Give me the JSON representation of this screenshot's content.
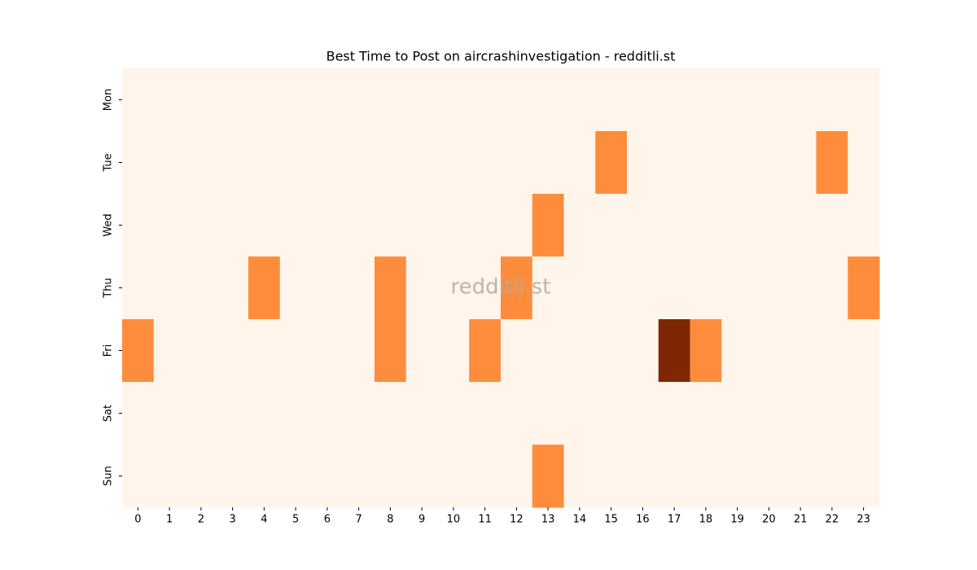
{
  "chart_data": {
    "type": "heatmap",
    "title": "Best Time to Post on aircrashinvestigation - redditli.st",
    "watermark": "redditli.st",
    "x": [
      0,
      1,
      2,
      3,
      4,
      5,
      6,
      7,
      8,
      9,
      10,
      11,
      12,
      13,
      14,
      15,
      16,
      17,
      18,
      19,
      20,
      21,
      22,
      23
    ],
    "y": [
      "Mon",
      "Tue",
      "Wed",
      "Thu",
      "Fri",
      "Sat",
      "Sun"
    ],
    "z": [
      [
        0,
        0,
        0,
        0,
        0,
        0,
        0,
        0,
        0,
        0,
        0,
        0,
        0,
        0,
        0,
        0,
        0,
        0,
        0,
        0,
        0,
        0,
        0,
        0
      ],
      [
        0,
        0,
        0,
        0,
        0,
        0,
        0,
        0,
        0,
        0,
        0,
        0,
        0,
        0,
        0,
        1,
        0,
        0,
        0,
        0,
        0,
        0,
        1,
        0
      ],
      [
        0,
        0,
        0,
        0,
        0,
        0,
        0,
        0,
        0,
        0,
        0,
        0,
        0,
        1,
        0,
        0,
        0,
        0,
        0,
        0,
        0,
        0,
        0,
        0
      ],
      [
        0,
        0,
        0,
        0,
        1,
        0,
        0,
        0,
        1,
        0,
        0,
        0,
        1,
        0,
        0,
        0,
        0,
        0,
        0,
        0,
        0,
        0,
        0,
        1
      ],
      [
        1,
        0,
        0,
        0,
        0,
        0,
        0,
        0,
        1,
        0,
        0,
        1,
        0,
        0,
        0,
        0,
        0,
        2,
        1,
        0,
        0,
        0,
        0,
        0
      ],
      [
        0,
        0,
        0,
        0,
        0,
        0,
        0,
        0,
        0,
        0,
        0,
        0,
        0,
        0,
        0,
        0,
        0,
        0,
        0,
        0,
        0,
        0,
        0,
        0
      ],
      [
        0,
        0,
        0,
        0,
        0,
        0,
        0,
        0,
        0,
        0,
        0,
        0,
        0,
        1,
        0,
        0,
        0,
        0,
        0,
        0,
        0,
        0,
        0,
        0
      ]
    ],
    "zlim": [
      0,
      2
    ],
    "colorscale": [
      "#fff5eb",
      "#fd8d3c",
      "#7f2704"
    ]
  }
}
